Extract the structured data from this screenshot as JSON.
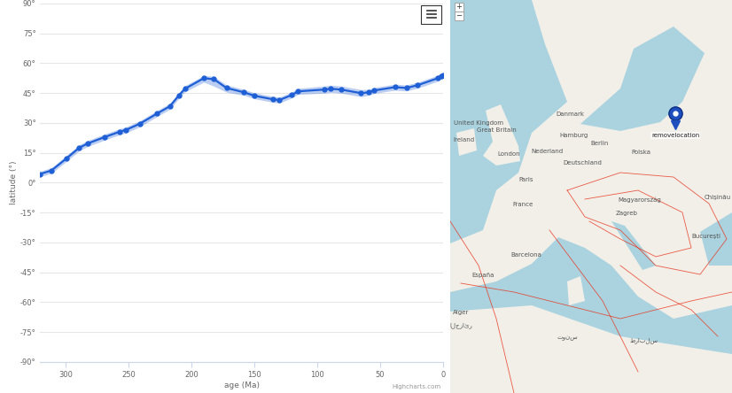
{
  "chart_data": {
    "type": "line",
    "x": [
      320,
      311,
      299,
      289,
      282,
      269,
      257,
      252,
      241,
      227,
      217,
      210,
      205,
      190,
      182,
      172,
      158,
      150,
      135,
      130,
      120,
      115,
      94,
      89,
      81,
      65,
      59,
      55,
      38,
      29,
      20,
      4,
      1,
      0
    ],
    "values": [
      4.4,
      6.2,
      12.3,
      17.6,
      19.8,
      22.9,
      25.6,
      26.5,
      29.6,
      34.8,
      38.4,
      43.7,
      47.2,
      52.5,
      52.0,
      47.6,
      45.4,
      43.7,
      41.9,
      41.5,
      44.1,
      45.9,
      46.8,
      47.2,
      46.8,
      45.0,
      45.4,
      46.3,
      48.0,
      47.6,
      49.0,
      52.5,
      53.6,
      53.8
    ],
    "band_lower": [
      3.0,
      4.8,
      10.8,
      16.1,
      18.3,
      21.4,
      24.1,
      25.0,
      28.1,
      33.3,
      36.9,
      42.2,
      45.7,
      50.5,
      48.5,
      45.5,
      43.9,
      42.2,
      40.4,
      40.0,
      42.6,
      44.4,
      45.0,
      45.4,
      45.0,
      43.2,
      43.9,
      44.8,
      46.5,
      46.1,
      47.5,
      51.0,
      52.1,
      52.3
    ],
    "band_upper": [
      5.8,
      7.6,
      13.8,
      19.1,
      21.3,
      24.4,
      27.1,
      28.0,
      31.1,
      36.3,
      39.9,
      45.2,
      48.7,
      53.9,
      53.4,
      49.1,
      46.9,
      45.2,
      43.4,
      43.0,
      45.6,
      47.4,
      48.6,
      49.0,
      48.6,
      46.8,
      46.9,
      47.8,
      49.5,
      49.1,
      50.5,
      54.0,
      55.1,
      55.3
    ],
    "xlabel": "age (Ma)",
    "ylabel": "latitude (°)",
    "xlim": [
      320,
      0
    ],
    "ylim": [
      -90,
      90
    ],
    "xticks": [
      300,
      250,
      200,
      150,
      100,
      50,
      0
    ],
    "yticks": [
      {
        "value": 90,
        "label": "90°"
      },
      {
        "value": 75,
        "label": "75°"
      },
      {
        "value": 60,
        "label": "60°"
      },
      {
        "value": 45,
        "label": "45°"
      },
      {
        "value": 30,
        "label": "30°"
      },
      {
        "value": 15,
        "label": "15°"
      },
      {
        "value": 0,
        "label": "0°"
      },
      {
        "value": -15,
        "label": "-15°"
      },
      {
        "value": -30,
        "label": "-30°"
      },
      {
        "value": -45,
        "label": "-45°"
      },
      {
        "value": -60,
        "label": "-60°"
      },
      {
        "value": -75,
        "label": "-75°"
      },
      {
        "value": -90,
        "label": "-90°"
      }
    ],
    "grid": true,
    "color": "#1f5fd6",
    "marker": "o",
    "line_style": "solid",
    "credit": "Highcharts.com"
  },
  "map": {
    "zoom_buttons": [
      "+",
      "−"
    ],
    "location_label": "removelocation",
    "labels": [
      "United Kingdom",
      "Great Britain",
      "Ireland",
      "London",
      "Danmark",
      "Hamburg",
      "Berlin",
      "Nederland",
      "Deutschland",
      "Polska",
      "Paris",
      "France",
      "Barcelona",
      "España",
      "Magyarország",
      "Zagreb",
      "Chișinău",
      "București",
      "Alger",
      "الجزائر",
      "تونس",
      "طرابلس"
    ]
  }
}
